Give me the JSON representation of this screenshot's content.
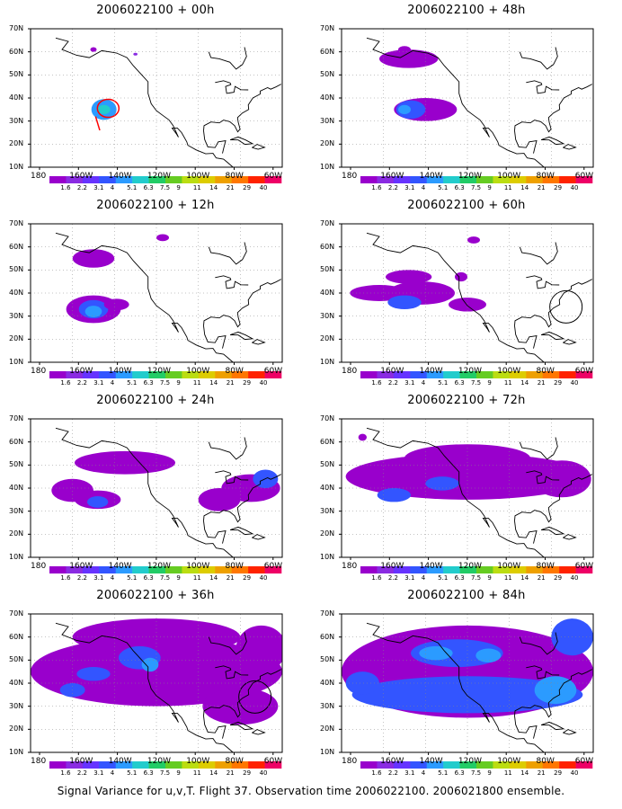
{
  "panels": [
    {
      "title": "2006022100 + 00h",
      "hours": 0,
      "level": 0
    },
    {
      "title": "2006022100 + 48h",
      "hours": 48,
      "level": 4
    },
    {
      "title": "2006022100 + 12h",
      "hours": 12,
      "level": 1
    },
    {
      "title": "2006022100 + 60h",
      "hours": 60,
      "level": 5
    },
    {
      "title": "2006022100 + 24h",
      "hours": 24,
      "level": 2
    },
    {
      "title": "2006022100 + 72h",
      "hours": 72,
      "level": 6
    },
    {
      "title": "2006022100 + 36h",
      "hours": 36,
      "level": 3
    },
    {
      "title": "2006022100 + 84h",
      "hours": 84,
      "level": 7
    }
  ],
  "axes": {
    "lat_labels": [
      "70N",
      "60N",
      "50N",
      "40N",
      "30N",
      "20N",
      "10N"
    ],
    "lon_labels": [
      "180",
      "160W",
      "140W",
      "120W",
      "100W",
      "80W",
      "60W"
    ]
  },
  "colorbar": {
    "labels": [
      "1.6",
      "2.2",
      "3.1",
      "4",
      "5.1",
      "6.3",
      "7.5",
      "9",
      "11",
      "14",
      "21",
      "29",
      "40"
    ],
    "colors": [
      "#9900cc",
      "#8a2be2",
      "#6633ff",
      "#3355ff",
      "#2b9bff",
      "#22cccc",
      "#22cc66",
      "#66cc22",
      "#bbdd11",
      "#ddcc00",
      "#eea000",
      "#ff7700",
      "#ff2200",
      "#ee0066"
    ]
  },
  "footer": "Signal Variance for u,v,T. Flight 37. Observation time 2006022100. 2006021800 ensemble."
}
